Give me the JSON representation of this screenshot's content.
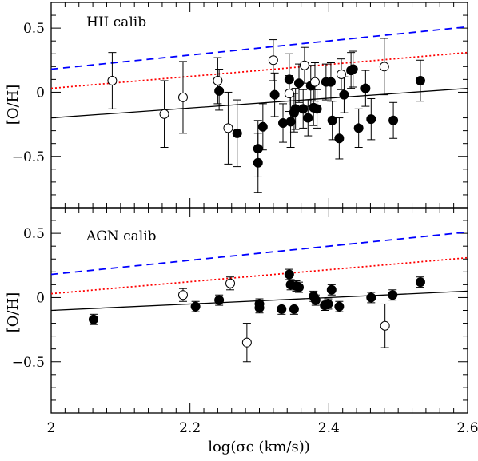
{
  "chart_data": [
    {
      "type": "scatter",
      "panel_label": "HII calib",
      "ylabel": "[O/H]",
      "xlabel": "",
      "xlim": [
        2.0,
        2.6
      ],
      "ylim": [
        -0.9,
        0.7
      ],
      "y_ticks": [
        "0.5",
        "0",
        "−0.5"
      ],
      "x_ticks": [],
      "grid": false,
      "lines": [
        {
          "style": "solid",
          "color": "#000000",
          "x": [
            2.0,
            2.6
          ],
          "y": [
            -0.2,
            0.03
          ]
        },
        {
          "style": "dotted",
          "color": "#ff0000",
          "x": [
            2.0,
            2.6
          ],
          "y": [
            0.03,
            0.31
          ]
        },
        {
          "style": "dashed",
          "color": "#0000ff",
          "x": [
            2.0,
            2.6
          ],
          "y": [
            0.18,
            0.51
          ]
        }
      ],
      "series": [
        {
          "marker": "filled",
          "points": [
            {
              "x": 2.242,
              "y": 0.01,
              "lo": 0.15,
              "hi": 0.17
            },
            {
              "x": 2.268,
              "y": -0.32,
              "lo": 0.26,
              "hi": 0.26
            },
            {
              "x": 2.298,
              "y": -0.44,
              "lo": 0.22,
              "hi": 0.22
            },
            {
              "x": 2.298,
              "y": -0.55,
              "lo": 0.23,
              "hi": 0.23
            },
            {
              "x": 2.305,
              "y": -0.27,
              "lo": 0.18,
              "hi": 0.18
            },
            {
              "x": 2.322,
              "y": -0.02,
              "lo": 0.17,
              "hi": 0.17
            },
            {
              "x": 2.334,
              "y": -0.24,
              "lo": 0.15,
              "hi": 0.15
            },
            {
              "x": 2.343,
              "y": 0.1,
              "lo": 0.2,
              "hi": 0.2
            },
            {
              "x": 2.345,
              "y": -0.23,
              "lo": 0.2,
              "hi": 0.2
            },
            {
              "x": 2.35,
              "y": -0.16,
              "lo": 0.15,
              "hi": 0.15
            },
            {
              "x": 2.352,
              "y": -0.13,
              "lo": 0.16,
              "hi": 0.16
            },
            {
              "x": 2.357,
              "y": 0.07,
              "lo": 0.15,
              "hi": 0.15
            },
            {
              "x": 2.363,
              "y": -0.13,
              "lo": 0.15,
              "hi": 0.15
            },
            {
              "x": 2.37,
              "y": -0.2,
              "lo": 0.14,
              "hi": 0.14
            },
            {
              "x": 2.374,
              "y": 0.05,
              "lo": 0.16,
              "hi": 0.16
            },
            {
              "x": 2.378,
              "y": -0.12,
              "lo": 0.14,
              "hi": 0.14
            },
            {
              "x": 2.383,
              "y": -0.13,
              "lo": 0.15,
              "hi": 0.15
            },
            {
              "x": 2.396,
              "y": 0.08,
              "lo": 0.14,
              "hi": 0.14
            },
            {
              "x": 2.403,
              "y": 0.08,
              "lo": 0.15,
              "hi": 0.15
            },
            {
              "x": 2.405,
              "y": -0.22,
              "lo": 0.15,
              "hi": 0.15
            },
            {
              "x": 2.415,
              "y": -0.36,
              "lo": 0.16,
              "hi": 0.16
            },
            {
              "x": 2.422,
              "y": -0.02,
              "lo": 0.14,
              "hi": 0.14
            },
            {
              "x": 2.432,
              "y": 0.17,
              "lo": 0.14,
              "hi": 0.14
            },
            {
              "x": 2.435,
              "y": 0.18,
              "lo": 0.14,
              "hi": 0.14
            },
            {
              "x": 2.443,
              "y": -0.28,
              "lo": 0.15,
              "hi": 0.15
            },
            {
              "x": 2.453,
              "y": 0.03,
              "lo": 0.14,
              "hi": 0.14
            },
            {
              "x": 2.461,
              "y": -0.21,
              "lo": 0.16,
              "hi": 0.16
            },
            {
              "x": 2.493,
              "y": -0.22,
              "lo": 0.14,
              "hi": 0.14
            },
            {
              "x": 2.532,
              "y": 0.09,
              "lo": 0.16,
              "hi": 0.16
            }
          ]
        },
        {
          "marker": "open",
          "points": [
            {
              "x": 2.088,
              "y": 0.09,
              "lo": 0.22,
              "hi": 0.22
            },
            {
              "x": 2.163,
              "y": -0.17,
              "lo": 0.26,
              "hi": 0.26
            },
            {
              "x": 2.19,
              "y": -0.04,
              "lo": 0.28,
              "hi": 0.28
            },
            {
              "x": 2.24,
              "y": 0.09,
              "lo": 0.18,
              "hi": 0.18
            },
            {
              "x": 2.255,
              "y": -0.28,
              "lo": 0.28,
              "hi": 0.28
            },
            {
              "x": 2.32,
              "y": 0.25,
              "lo": 0.16,
              "hi": 0.16
            },
            {
              "x": 2.343,
              "y": -0.01,
              "lo": 0.14,
              "hi": 0.14
            },
            {
              "x": 2.365,
              "y": 0.21,
              "lo": 0.14,
              "hi": 0.14
            },
            {
              "x": 2.38,
              "y": 0.08,
              "lo": 0.15,
              "hi": 0.15
            },
            {
              "x": 2.418,
              "y": 0.14,
              "lo": 0.12,
              "hi": 0.12
            },
            {
              "x": 2.48,
              "y": 0.2,
              "lo": 0.22,
              "hi": 0.22
            }
          ]
        }
      ]
    },
    {
      "type": "scatter",
      "panel_label": "AGN calib",
      "ylabel": "[O/H]",
      "xlabel": "log(σc (km/s))",
      "xlim": [
        2.0,
        2.6
      ],
      "ylim": [
        -0.9,
        0.7
      ],
      "y_ticks": [
        "0.5",
        "0",
        "−0.5"
      ],
      "x_ticks": [
        "2",
        "2.2",
        "2.4",
        "2.6"
      ],
      "grid": false,
      "lines": [
        {
          "style": "solid",
          "color": "#000000",
          "x": [
            2.0,
            2.6
          ],
          "y": [
            -0.1,
            0.05
          ]
        },
        {
          "style": "dotted",
          "color": "#ff0000",
          "x": [
            2.0,
            2.6
          ],
          "y": [
            0.03,
            0.31
          ]
        },
        {
          "style": "dashed",
          "color": "#0000ff",
          "x": [
            2.0,
            2.6
          ],
          "y": [
            0.18,
            0.51
          ]
        }
      ],
      "series": [
        {
          "marker": "filled",
          "points": [
            {
              "x": 2.061,
              "y": -0.17,
              "lo": 0.04,
              "hi": 0.04
            },
            {
              "x": 2.208,
              "y": -0.07,
              "lo": 0.04,
              "hi": 0.04
            },
            {
              "x": 2.242,
              "y": -0.02,
              "lo": 0.04,
              "hi": 0.04
            },
            {
              "x": 2.3,
              "y": -0.05,
              "lo": 0.04,
              "hi": 0.04
            },
            {
              "x": 2.3,
              "y": -0.08,
              "lo": 0.04,
              "hi": 0.04
            },
            {
              "x": 2.332,
              "y": -0.09,
              "lo": 0.04,
              "hi": 0.04
            },
            {
              "x": 2.343,
              "y": 0.18,
              "lo": 0.04,
              "hi": 0.04
            },
            {
              "x": 2.345,
              "y": 0.1,
              "lo": 0.04,
              "hi": 0.04
            },
            {
              "x": 2.35,
              "y": -0.09,
              "lo": 0.04,
              "hi": 0.04
            },
            {
              "x": 2.353,
              "y": 0.09,
              "lo": 0.04,
              "hi": 0.04
            },
            {
              "x": 2.357,
              "y": 0.08,
              "lo": 0.04,
              "hi": 0.04
            },
            {
              "x": 2.378,
              "y": 0.01,
              "lo": 0.04,
              "hi": 0.04
            },
            {
              "x": 2.381,
              "y": -0.02,
              "lo": 0.04,
              "hi": 0.04
            },
            {
              "x": 2.394,
              "y": -0.06,
              "lo": 0.04,
              "hi": 0.04
            },
            {
              "x": 2.399,
              "y": -0.05,
              "lo": 0.04,
              "hi": 0.04
            },
            {
              "x": 2.404,
              "y": 0.06,
              "lo": 0.04,
              "hi": 0.04
            },
            {
              "x": 2.415,
              "y": -0.07,
              "lo": 0.04,
              "hi": 0.04
            },
            {
              "x": 2.461,
              "y": 0.0,
              "lo": 0.04,
              "hi": 0.04
            },
            {
              "x": 2.492,
              "y": 0.02,
              "lo": 0.04,
              "hi": 0.04
            },
            {
              "x": 2.532,
              "y": 0.12,
              "lo": 0.04,
              "hi": 0.04
            }
          ]
        },
        {
          "marker": "open",
          "points": [
            {
              "x": 2.19,
              "y": 0.02,
              "lo": 0.05,
              "hi": 0.05
            },
            {
              "x": 2.258,
              "y": 0.11,
              "lo": 0.05,
              "hi": 0.05
            },
            {
              "x": 2.282,
              "y": -0.35,
              "lo": 0.15,
              "hi": 0.15
            },
            {
              "x": 2.481,
              "y": -0.22,
              "lo": 0.17,
              "hi": 0.17
            }
          ]
        }
      ]
    }
  ]
}
